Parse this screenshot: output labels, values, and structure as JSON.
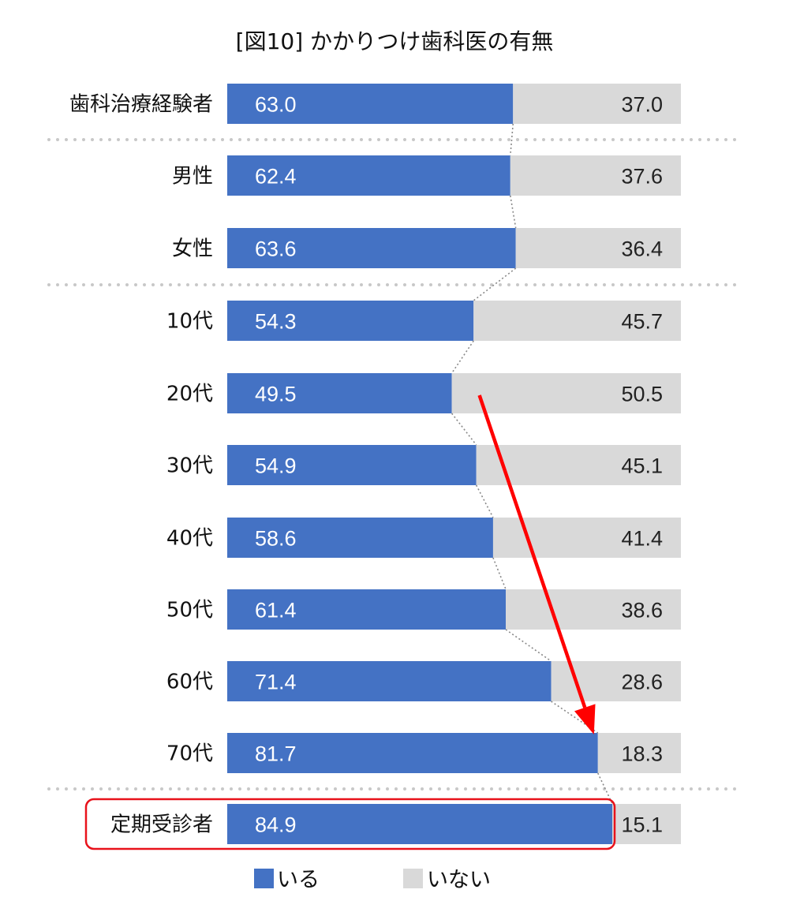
{
  "chart_data": {
    "type": "bar",
    "orientation": "horizontal",
    "stacked": "100%",
    "title": "[図10] かかりつけ歯科医の有無",
    "categories": [
      "歯科治療経験者",
      "男性",
      "女性",
      "10代",
      "20代",
      "30代",
      "40代",
      "50代",
      "60代",
      "70代",
      "定期受診者"
    ],
    "series": [
      {
        "name": "いる",
        "color": "#4472C4",
        "values": [
          63.0,
          62.4,
          63.6,
          54.3,
          49.5,
          54.9,
          58.6,
          61.4,
          71.4,
          81.7,
          84.9
        ]
      },
      {
        "name": "いない",
        "color": "#D9D9D9",
        "values": [
          37.0,
          37.6,
          36.4,
          45.7,
          50.5,
          45.1,
          41.4,
          38.6,
          28.6,
          18.3,
          15.1
        ]
      }
    ],
    "value_labels": {
      "いる": [
        "63.0",
        "62.4",
        "63.6",
        "54.3",
        "49.5",
        "54.9",
        "58.6",
        "61.4",
        "71.4",
        "81.7",
        "84.9"
      ],
      "いない": [
        "37.0",
        "37.6",
        "36.4",
        "45.7",
        "50.5",
        "45.1",
        "41.4",
        "38.6",
        "28.6",
        "18.3",
        "15.1"
      ]
    },
    "xlim": [
      0,
      100
    ],
    "grid": false,
    "legend": "bottom-center",
    "group_separators_after": [
      "歯科治療経験者",
      "女性",
      "70代"
    ],
    "highlighted_category": "定期受診者",
    "annotation": "red arrow from the 20代 bar down to the 70代 bar",
    "colors": {
      "highlight": "#E8121B",
      "arrow": "#FF0000",
      "connector": "#888888",
      "separator": "#C8C8C8"
    }
  }
}
